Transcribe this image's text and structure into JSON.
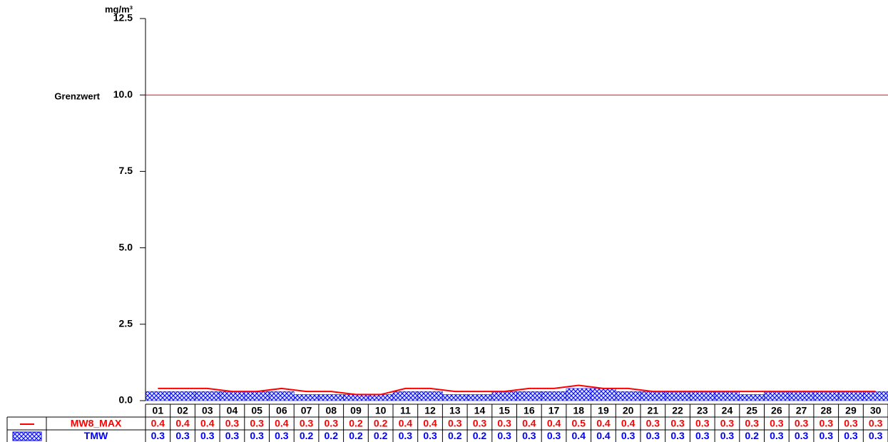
{
  "chart_data": {
    "type": "combo",
    "y_label": "mg/m³",
    "categories": [
      "01",
      "02",
      "03",
      "04",
      "05",
      "06",
      "07",
      "08",
      "09",
      "10",
      "11",
      "12",
      "13",
      "14",
      "15",
      "16",
      "17",
      "18",
      "19",
      "20",
      "21",
      "22",
      "23",
      "24",
      "25",
      "26",
      "27",
      "28",
      "29",
      "30"
    ],
    "series": [
      {
        "name": "MW8_MAX",
        "type": "line",
        "color": "#ff0000",
        "values": [
          0.4,
          0.4,
          0.4,
          0.3,
          0.3,
          0.4,
          0.3,
          0.3,
          0.2,
          0.2,
          0.4,
          0.4,
          0.3,
          0.3,
          0.3,
          0.4,
          0.4,
          0.5,
          0.4,
          0.4,
          0.3,
          0.3,
          0.3,
          0.3,
          0.3,
          0.3,
          0.3,
          0.3,
          0.3,
          0.3
        ]
      },
      {
        "name": "TMW",
        "type": "area",
        "color": "#0000ff",
        "values": [
          0.3,
          0.3,
          0.3,
          0.3,
          0.3,
          0.3,
          0.2,
          0.2,
          0.2,
          0.2,
          0.3,
          0.3,
          0.2,
          0.2,
          0.3,
          0.3,
          0.3,
          0.4,
          0.4,
          0.3,
          0.3,
          0.3,
          0.3,
          0.3,
          0.2,
          0.3,
          0.3,
          0.3,
          0.3,
          0.3
        ]
      }
    ],
    "threshold": {
      "label": "Grenzwert",
      "value": 10,
      "color": "#ff0000"
    },
    "ylim": [
      0,
      12.5
    ],
    "yticks": [
      {
        "value": 0,
        "label": "0.0"
      },
      2.5,
      {
        "value": 5,
        "label": "5.0"
      },
      7.5,
      {
        "value": 10,
        "label": "10.0"
      },
      12.5
    ]
  }
}
